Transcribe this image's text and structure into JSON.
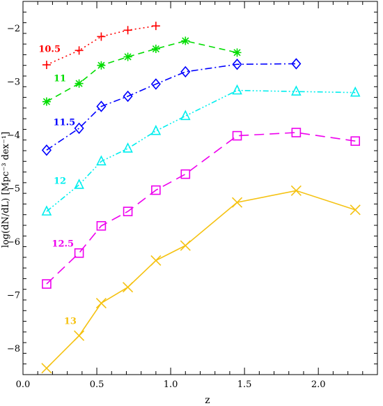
{
  "chart_data": {
    "type": "line",
    "xlabel": "z",
    "ylabel": "log(dN/dL) [Mpc⁻³ dex⁻¹]",
    "xlim": [
      0.0,
      2.4
    ],
    "ylim": [
      -8.5,
      -1.5
    ],
    "x_ticks": [
      {
        "value": 0.0,
        "label": "0.0"
      },
      {
        "value": 0.5,
        "label": "0.5"
      },
      {
        "value": 1.0,
        "label": "1.0"
      },
      {
        "value": 1.5,
        "label": "1.5"
      },
      {
        "value": 2.0,
        "label": "2.0"
      }
    ],
    "y_ticks": [
      {
        "value": -2,
        "label": "−2"
      },
      {
        "value": -3,
        "label": "−3"
      },
      {
        "value": -4,
        "label": "−4"
      },
      {
        "value": -5,
        "label": "−5"
      },
      {
        "value": -6,
        "label": "−6"
      },
      {
        "value": -7,
        "label": "−7"
      },
      {
        "value": -8,
        "label": "−8"
      }
    ],
    "grid": false,
    "series": [
      {
        "name": "10.5",
        "color": "#ff0000",
        "marker": "plus",
        "dash": "2,4",
        "label_at": [
          0.18,
          -2.45
        ],
        "x": [
          0.16,
          0.38,
          0.53,
          0.71,
          0.9
        ],
        "y": [
          -2.69,
          -2.42,
          -2.16,
          -2.04,
          -1.96
        ]
      },
      {
        "name": "11",
        "color": "#00dd00",
        "marker": "asterisk",
        "dash": "9,6",
        "label_at": [
          0.25,
          -3.0
        ],
        "x": [
          0.16,
          0.38,
          0.53,
          0.71,
          0.9,
          1.1,
          1.45
        ],
        "y": [
          -3.38,
          -3.04,
          -2.7,
          -2.54,
          -2.39,
          -2.24,
          -2.46
        ]
      },
      {
        "name": "11.5",
        "color": "#0000ff",
        "marker": "diamond",
        "dash": "10,4,2,4",
        "label_at": [
          0.28,
          -3.82
        ],
        "x": [
          0.16,
          0.38,
          0.53,
          0.71,
          0.9,
          1.1,
          1.45,
          1.85
        ],
        "y": [
          -4.29,
          -3.88,
          -3.47,
          -3.28,
          -3.05,
          -2.82,
          -2.68,
          -2.67
        ]
      },
      {
        "name": "12",
        "color": "#00eeee",
        "marker": "triangle",
        "dash": "8,3,2,3,2,3,2,3",
        "label_at": [
          0.25,
          -4.92
        ],
        "x": [
          0.16,
          0.38,
          0.53,
          0.71,
          0.9,
          1.1,
          1.45,
          1.85,
          2.25
        ],
        "y": [
          -5.44,
          -4.94,
          -4.5,
          -4.26,
          -3.93,
          -3.65,
          -3.17,
          -3.19,
          -3.21
        ]
      },
      {
        "name": "12.5",
        "color": "#ee00ee",
        "marker": "square",
        "dash": "14,8",
        "label_at": [
          0.27,
          -6.1
        ],
        "x": [
          0.16,
          0.38,
          0.53,
          0.71,
          0.9,
          1.1,
          1.45,
          1.85,
          2.25
        ],
        "y": [
          -6.8,
          -6.22,
          -5.71,
          -5.44,
          -5.04,
          -4.74,
          -4.02,
          -3.96,
          -4.12
        ]
      },
      {
        "name": "13",
        "color": "#f5c211",
        "marker": "x",
        "dash": "",
        "label_at": [
          0.32,
          -7.55
        ],
        "x": [
          0.16,
          0.38,
          0.53,
          0.71,
          0.9,
          1.1,
          1.45,
          1.85,
          2.25
        ],
        "y": [
          -8.38,
          -7.77,
          -7.16,
          -6.86,
          -6.36,
          -6.08,
          -5.27,
          -5.05,
          -5.41
        ]
      }
    ]
  }
}
